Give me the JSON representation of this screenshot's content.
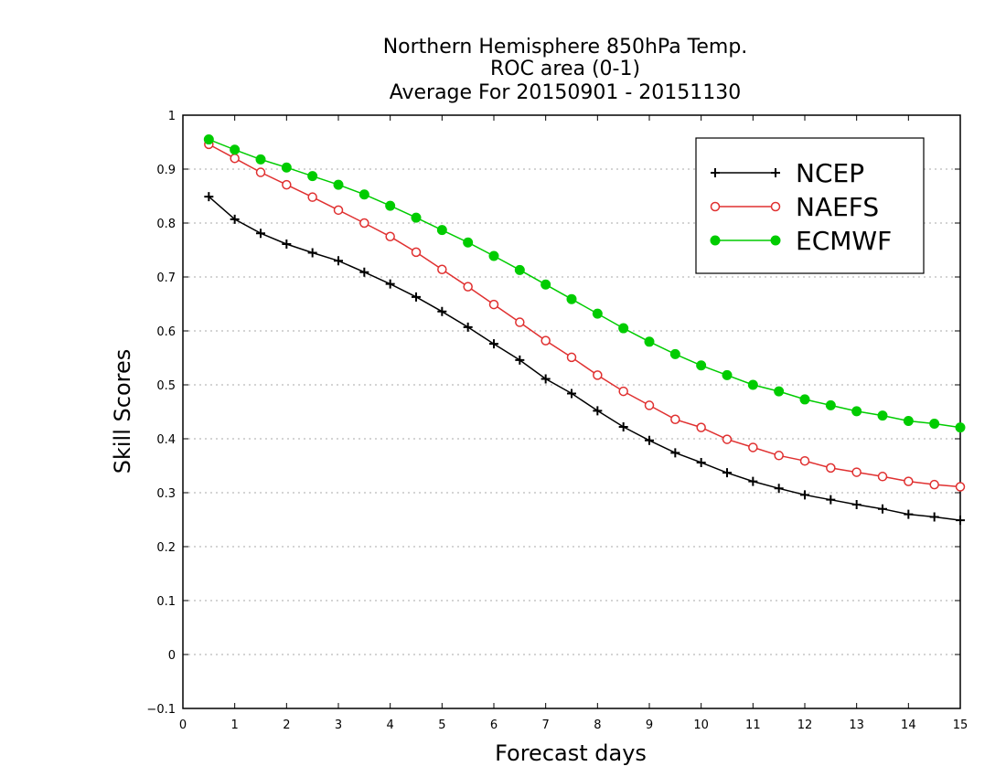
{
  "chart_data": {
    "type": "line",
    "title": [
      "Northern Hemisphere 850hPa Temp.",
      "ROC area (0-1)",
      "Average For 20150901 - 20151130"
    ],
    "xlabel": "Forecast days",
    "ylabel": "Skill Scores",
    "xlim": [
      0,
      15
    ],
    "ylim": [
      -0.1,
      1
    ],
    "x_ticks": [
      "0",
      "1",
      "2",
      "3",
      "4",
      "5",
      "6",
      "7",
      "8",
      "9",
      "10",
      "11",
      "12",
      "13",
      "14",
      "15"
    ],
    "y_ticks": [
      "−0.1",
      "0",
      "0.1",
      "0.2",
      "0.3",
      "0.4",
      "0.5",
      "0.6",
      "0.7",
      "0.8",
      "0.9",
      "1"
    ],
    "grid": "horizontal dotted",
    "legend_position": "top-right",
    "x": [
      0.5,
      1,
      1.5,
      2,
      2.5,
      3,
      3.5,
      4,
      4.5,
      5,
      5.5,
      6,
      6.5,
      7,
      7.5,
      8,
      8.5,
      9,
      9.5,
      10,
      10.5,
      11,
      11.5,
      12,
      12.5,
      13,
      13.5,
      14,
      14.5,
      15
    ],
    "series": [
      {
        "name": "NCEP",
        "color": "#000000",
        "marker": "plus",
        "values": [
          0.849,
          0.807,
          0.781,
          0.761,
          0.745,
          0.73,
          0.709,
          0.687,
          0.663,
          0.636,
          0.607,
          0.576,
          0.546,
          0.511,
          0.484,
          0.452,
          0.422,
          0.397,
          0.374,
          0.356,
          0.337,
          0.321,
          0.308,
          0.296,
          0.287,
          0.278,
          0.27,
          0.26,
          0.255,
          0.249
        ]
      },
      {
        "name": "NAEFS",
        "color": "#e03030",
        "marker": "open-circle",
        "values": [
          0.946,
          0.92,
          0.894,
          0.871,
          0.848,
          0.824,
          0.8,
          0.775,
          0.746,
          0.714,
          0.682,
          0.649,
          0.616,
          0.582,
          0.551,
          0.518,
          0.488,
          0.462,
          0.436,
          0.421,
          0.399,
          0.384,
          0.369,
          0.359,
          0.346,
          0.338,
          0.33,
          0.321,
          0.315,
          0.311
        ]
      },
      {
        "name": "ECMWF",
        "color": "#00cc00",
        "marker": "filled-circle",
        "values": [
          0.955,
          0.936,
          0.918,
          0.903,
          0.887,
          0.871,
          0.853,
          0.832,
          0.81,
          0.787,
          0.764,
          0.739,
          0.713,
          0.686,
          0.659,
          0.632,
          0.605,
          0.58,
          0.557,
          0.536,
          0.518,
          0.5,
          0.488,
          0.473,
          0.462,
          0.451,
          0.443,
          0.433,
          0.428,
          0.421
        ]
      }
    ]
  }
}
